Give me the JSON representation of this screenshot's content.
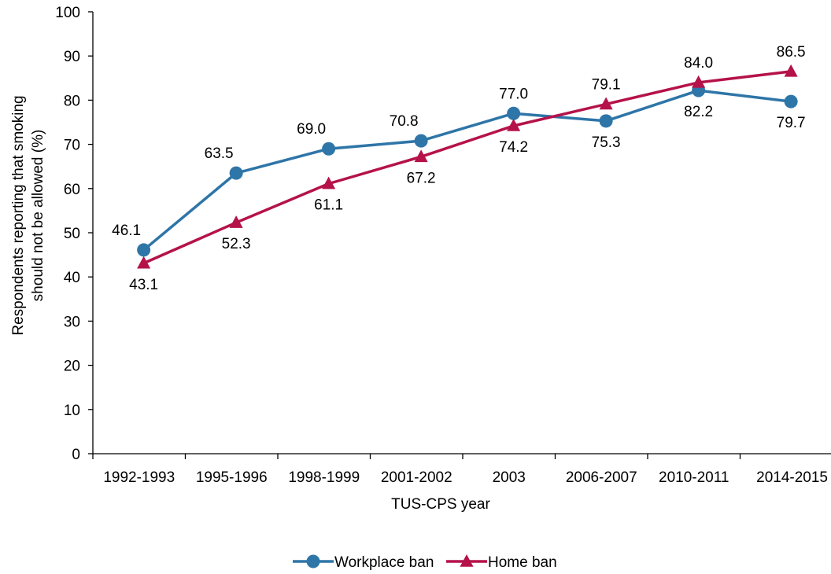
{
  "chart_data": {
    "type": "line",
    "title": "",
    "xlabel": "TUS-CPS year",
    "ylabel_lines": [
      "Respondents reporting that smoking",
      "should not be allowed (%)"
    ],
    "ylim": [
      0,
      100
    ],
    "yticks": [
      0,
      10,
      20,
      30,
      40,
      50,
      60,
      70,
      80,
      90,
      100
    ],
    "categories": [
      "1992-1993",
      "1995-1996",
      "1998-1999",
      "2001-2002",
      "2003",
      "2006-2007",
      "2010-2011",
      "2014-2015"
    ],
    "grid": false,
    "legend_position": "bottom",
    "series": [
      {
        "name": "Workplace ban",
        "color": "#2E75A8",
        "marker": "circle",
        "values": [
          46.1,
          63.5,
          69.0,
          70.8,
          77.0,
          75.3,
          82.2,
          79.7
        ],
        "label_position": [
          "above-left",
          "above-left",
          "above-left",
          "above-left",
          "above",
          "below",
          "below",
          "below"
        ]
      },
      {
        "name": "Home ban",
        "color": "#B5124A",
        "marker": "triangle",
        "values": [
          43.1,
          52.3,
          61.1,
          67.2,
          74.2,
          79.1,
          84.0,
          86.5
        ],
        "label_position": [
          "below",
          "below",
          "below",
          "below",
          "below",
          "above",
          "above",
          "above"
        ]
      }
    ]
  }
}
